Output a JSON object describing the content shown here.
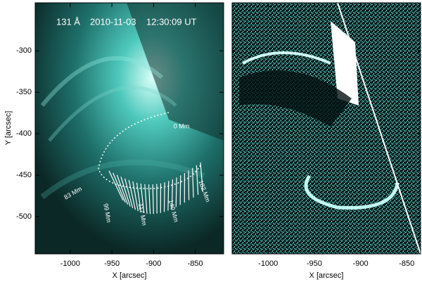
{
  "panels": [
    {
      "title": "131 Å",
      "date": "2010-11-03",
      "time": "12:30:09 UT",
      "x_label": "X [arcsec]",
      "y_label": "Y [arcsec]",
      "xlim": [
        -1042,
        -816
      ],
      "ylim": [
        -545,
        -242
      ],
      "xticks": [
        -1000,
        -950,
        -900,
        -850
      ],
      "yticks": [
        -300,
        -350,
        -400,
        -450,
        -500
      ],
      "slit_labels": [
        "0 Mm",
        "83 Mm",
        "99 Mm",
        "117 Mm",
        "140 Mm",
        "182 Mm"
      ]
    },
    {
      "x_label": "X [arcsec]",
      "xlim": [
        -1039,
        -835
      ],
      "ylim": [
        -545,
        -242
      ],
      "xticks": [
        -1000,
        -950,
        -900,
        -850
      ]
    }
  ]
}
